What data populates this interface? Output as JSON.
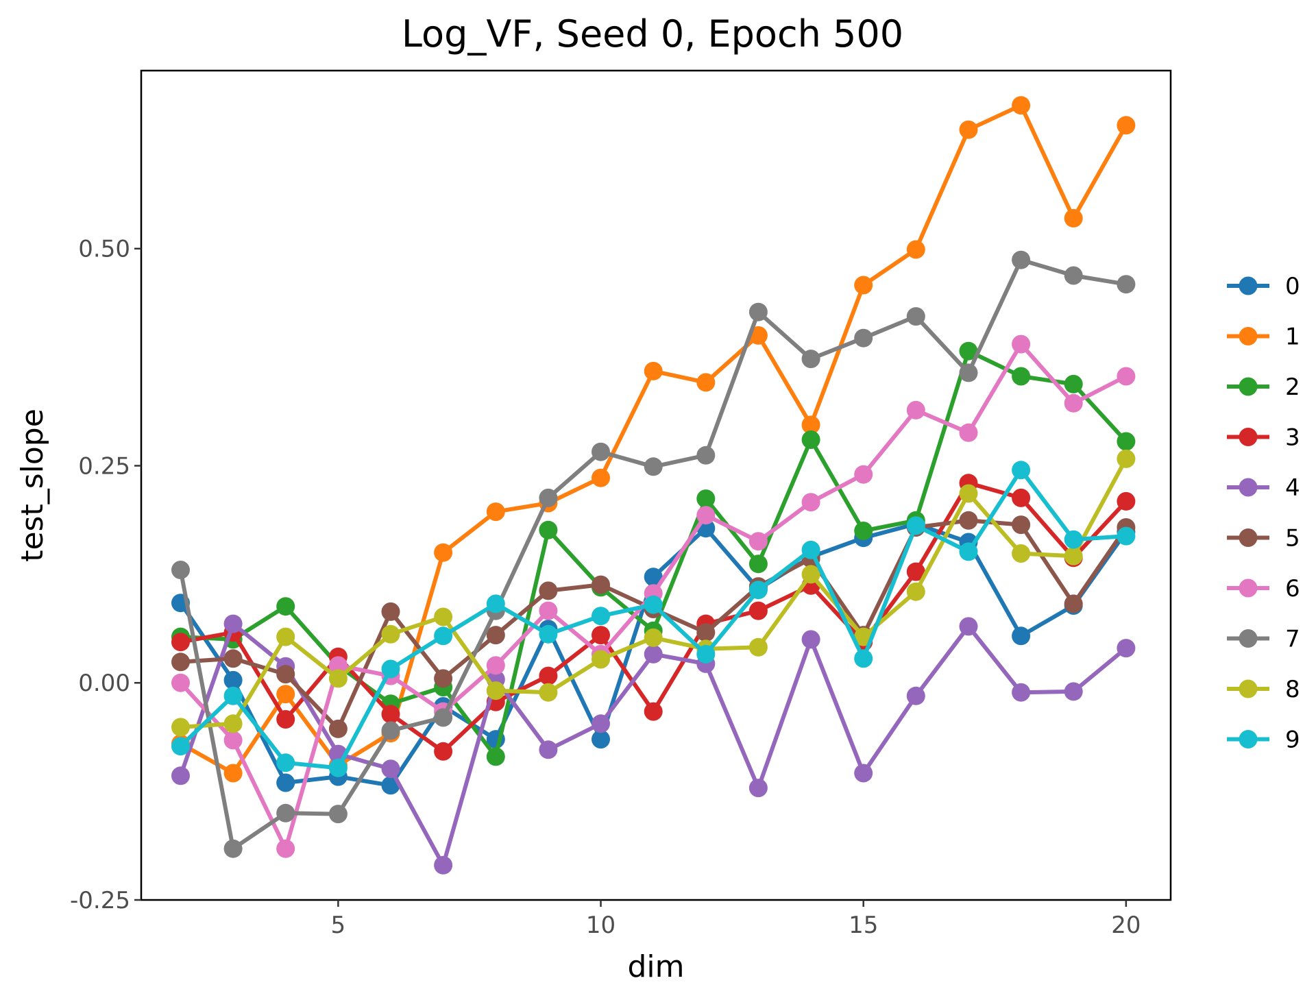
{
  "chart_data": {
    "type": "line",
    "title": "Log_VF, Seed 0, Epoch 500",
    "xlabel": "dim",
    "ylabel": "test_slope",
    "xlim": [
      1.25,
      20.85
    ],
    "ylim": [
      -0.25,
      0.705
    ],
    "xticks": [
      5,
      10,
      15,
      20
    ],
    "xtick_labels": [
      "5",
      "10",
      "15",
      "20"
    ],
    "yticks": [
      -0.25,
      0,
      0.25,
      0.5
    ],
    "ytick_labels": [
      "-0.25",
      "0.00",
      "0.25",
      "0.50"
    ],
    "legend_position": "right",
    "x": [
      2,
      3,
      4,
      5,
      6,
      7,
      8,
      9,
      10,
      11,
      12,
      13,
      14,
      15,
      16,
      17,
      18,
      19,
      20
    ],
    "series": [
      {
        "name": "0",
        "color": "#1f77b4",
        "values": [
          0.092,
          0.003,
          -0.115,
          -0.108,
          -0.118,
          -0.027,
          -0.065,
          0.062,
          -0.065,
          0.122,
          0.178,
          0.108,
          0.145,
          0.167,
          0.183,
          0.162,
          0.054,
          0.089,
          0.174
        ]
      },
      {
        "name": "1",
        "color": "#ff7f0e",
        "values": [
          -0.07,
          -0.104,
          -0.013,
          -0.095,
          -0.058,
          0.15,
          0.197,
          0.207,
          0.236,
          0.359,
          0.346,
          0.4,
          0.297,
          0.458,
          0.499,
          0.637,
          0.665,
          0.535,
          0.642
        ]
      },
      {
        "name": "2",
        "color": "#2ca02c",
        "values": [
          0.053,
          0.05,
          0.088,
          0.02,
          -0.024,
          -0.005,
          -0.085,
          0.176,
          0.11,
          0.06,
          0.212,
          0.137,
          0.28,
          0.175,
          0.187,
          0.382,
          0.353,
          0.344,
          0.278
        ]
      },
      {
        "name": "3",
        "color": "#d62728",
        "values": [
          0.047,
          0.058,
          -0.042,
          0.03,
          -0.036,
          -0.079,
          -0.022,
          0.008,
          0.055,
          -0.033,
          0.068,
          0.083,
          0.112,
          0.047,
          0.128,
          0.23,
          0.213,
          0.144,
          0.209
        ]
      },
      {
        "name": "4",
        "color": "#9467bd",
        "values": [
          -0.107,
          0.068,
          0.019,
          -0.082,
          -0.099,
          -0.21,
          0.004,
          -0.077,
          -0.047,
          0.033,
          0.022,
          -0.121,
          0.05,
          -0.104,
          -0.015,
          0.065,
          -0.011,
          -0.01,
          0.04
        ]
      },
      {
        "name": "5",
        "color": "#8c564b",
        "values": [
          0.024,
          0.028,
          0.01,
          -0.053,
          0.082,
          0.005,
          0.055,
          0.106,
          0.113,
          0.085,
          0.058,
          0.111,
          0.143,
          0.055,
          0.179,
          0.187,
          0.182,
          0.091,
          0.179
        ]
      },
      {
        "name": "6",
        "color": "#e377c2",
        "values": [
          0.0,
          -0.066,
          -0.191,
          0.02,
          0.008,
          -0.033,
          0.02,
          0.083,
          0.033,
          0.103,
          0.193,
          0.163,
          0.208,
          0.24,
          0.314,
          0.288,
          0.39,
          0.322,
          0.353
        ]
      },
      {
        "name": "7",
        "color": "#7f7f7f",
        "values": [
          0.13,
          -0.191,
          -0.15,
          -0.151,
          -0.055,
          -0.04,
          0.083,
          0.213,
          0.266,
          0.249,
          0.262,
          0.427,
          0.373,
          0.397,
          0.422,
          0.357,
          0.487,
          0.469,
          0.459
        ]
      },
      {
        "name": "8",
        "color": "#bcbd22",
        "values": [
          -0.051,
          -0.047,
          0.053,
          0.005,
          0.056,
          0.076,
          -0.009,
          -0.011,
          0.027,
          0.052,
          0.039,
          0.041,
          0.125,
          0.053,
          0.105,
          0.218,
          0.149,
          0.146,
          0.258
        ]
      },
      {
        "name": "9",
        "color": "#17becf",
        "values": [
          -0.073,
          -0.015,
          -0.092,
          -0.098,
          0.016,
          0.054,
          0.091,
          0.056,
          0.077,
          0.09,
          0.033,
          0.107,
          0.153,
          0.028,
          0.181,
          0.151,
          0.245,
          0.165,
          0.169
        ]
      }
    ]
  }
}
